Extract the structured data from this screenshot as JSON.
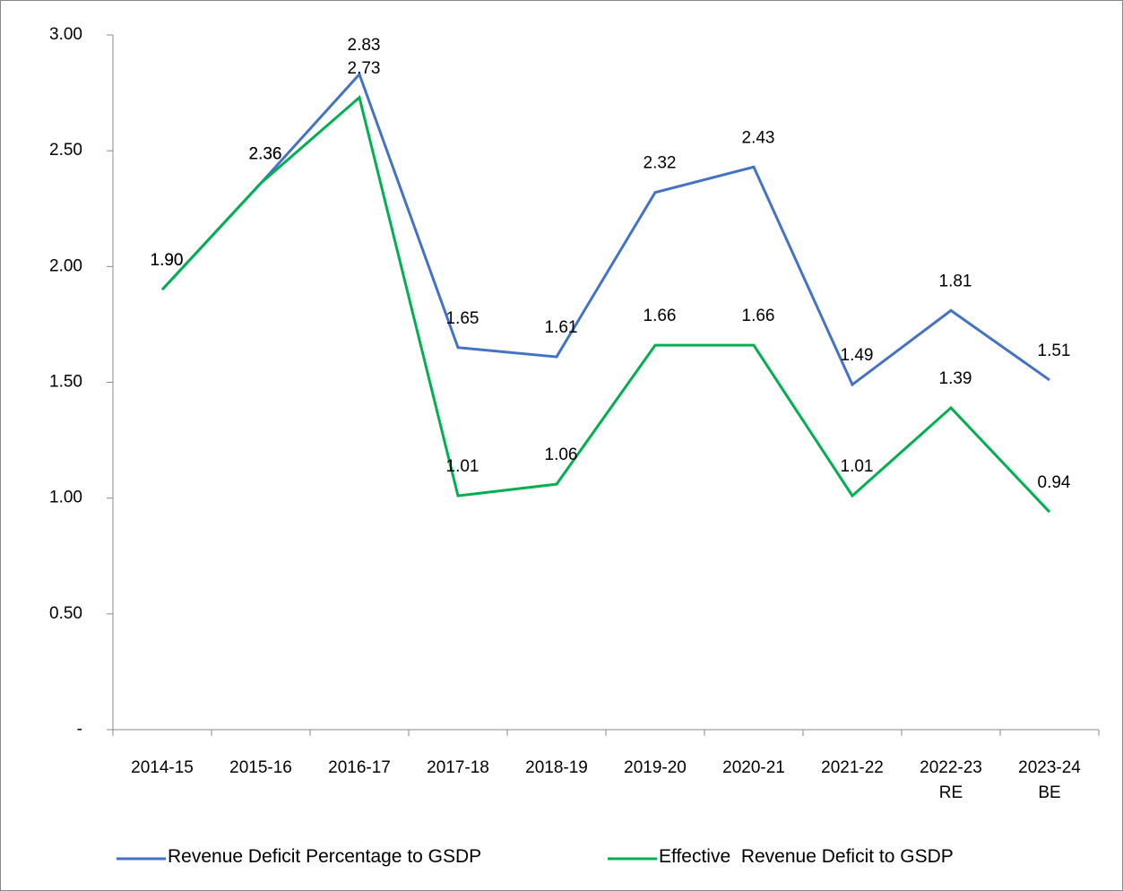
{
  "chart_data": {
    "type": "line",
    "categories": [
      "2014-15",
      "2015-16",
      "2016-17",
      "2017-18",
      "2018-19",
      "2019-20",
      "2020-21",
      "2021-22",
      "2022-23 RE",
      "2023-24 BE"
    ],
    "series": [
      {
        "name": "Revenue Deficit Percentage to GSDP",
        "color": "#4472c4",
        "values": [
          1.9,
          2.36,
          2.83,
          1.65,
          1.61,
          2.32,
          2.43,
          1.49,
          1.81,
          1.51
        ],
        "value_labels": [
          "1.90",
          "2.36",
          "2.83",
          "1.65",
          "1.61",
          "2.32",
          "2.43",
          "1.49",
          "1.81",
          "1.51"
        ]
      },
      {
        "name": "Effective  Revenue Deficit to GSDP",
        "color": "#00b050",
        "values": [
          1.9,
          2.36,
          2.73,
          1.01,
          1.06,
          1.66,
          1.66,
          1.01,
          1.39,
          0.94
        ],
        "value_labels": [
          "1.90",
          "2.36",
          "2.73",
          "1.01",
          "1.06",
          "1.66",
          "1.66",
          "1.01",
          "1.39",
          "0.94"
        ]
      }
    ],
    "ylim": [
      0,
      3
    ],
    "yticks": [
      {
        "value": 0,
        "label": "-"
      },
      {
        "value": 0.5,
        "label": "0.50"
      },
      {
        "value": 1,
        "label": "1.00"
      },
      {
        "value": 1.5,
        "label": "1.50"
      },
      {
        "value": 2,
        "label": "2.00"
      },
      {
        "value": 2.5,
        "label": "2.50"
      },
      {
        "value": 3,
        "label": "3.00"
      }
    ],
    "legend": "bottom"
  }
}
